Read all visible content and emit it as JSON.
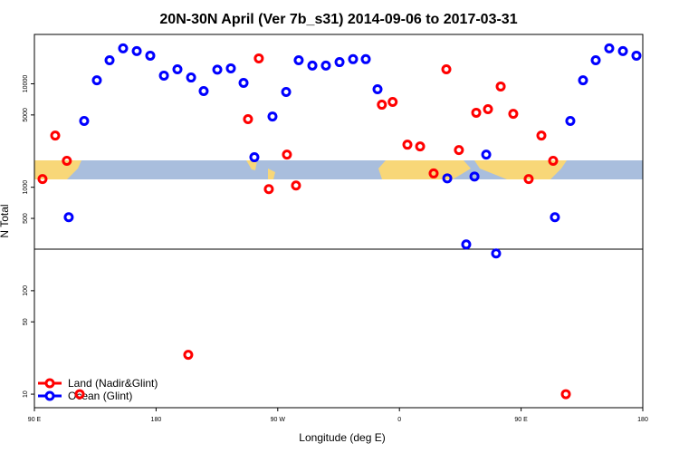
{
  "chart_data": {
    "type": "scatter",
    "title": "20N-30N April (Ver 7b_s31)   2014-09-06 to 2017-03-31",
    "x_label": "Longitude (deg E)",
    "y_label": "N Total",
    "xlim": [
      90,
      540
    ],
    "xticks": [
      {
        "value": 90,
        "label": "90 E"
      },
      180,
      {
        "value": 270,
        "label": "90 W"
      },
      {
        "value": 360,
        "label": "0"
      },
      {
        "value": 450,
        "label": "90 E"
      },
      {
        "value": 540,
        "label": "180"
      }
    ],
    "ylim": [
      7.4,
      30000
    ],
    "yticks": [
      10,
      50,
      100,
      500,
      1000,
      5000,
      10000
    ],
    "log_y": true,
    "legend": "bottom-left",
    "series": [
      {
        "name": "Land (Nadir&Glint)",
        "color": "#ff0000",
        "x": [
          96,
          105.4,
          114,
          123.5,
          203.8,
          248,
          256,
          263.4,
          276.8,
          283.5,
          347,
          355,
          365.9,
          375.3,
          385.3,
          394.7,
          404,
          416.8,
          425.5,
          434.9,
          444.2,
          455.6,
          465,
          473.7,
          483.1
        ],
        "values": [
          1200,
          3160,
          1800,
          10,
          24,
          4550,
          17600,
          960,
          2070,
          1040,
          6280,
          6680,
          2580,
          2480,
          1360,
          13800,
          2290,
          5250,
          5680,
          9420,
          5130,
          1200,
          3160,
          1800,
          10
        ]
      },
      {
        "name": "Ocean (Glint)",
        "color": "#0000ff",
        "x": [
          115.4,
          126.8,
          136.2,
          145.6,
          155.6,
          165.7,
          175.7,
          185.8,
          195.8,
          205.9,
          215.2,
          225.3,
          235.3,
          244.7,
          252.7,
          266.1,
          276.2,
          285.5,
          295.6,
          305.6,
          315.7,
          325.7,
          335.1,
          343.8,
          395.4,
          409.4,
          415.5,
          424.2,
          431.5,
          475,
          486.4,
          495.8,
          505.2,
          515.2,
          525.3,
          535.3
        ],
        "values": [
          513,
          4370,
          10800,
          16900,
          22000,
          20700,
          18700,
          12000,
          13800,
          11500,
          8500,
          13700,
          14100,
          10200,
          1950,
          4830,
          8340,
          16900,
          15000,
          15000,
          16200,
          17300,
          17300,
          8850,
          1220,
          280,
          1270,
          2070,
          229,
          513,
          4370,
          10800,
          16900,
          22000,
          20700,
          18700
        ]
      }
    ]
  }
}
